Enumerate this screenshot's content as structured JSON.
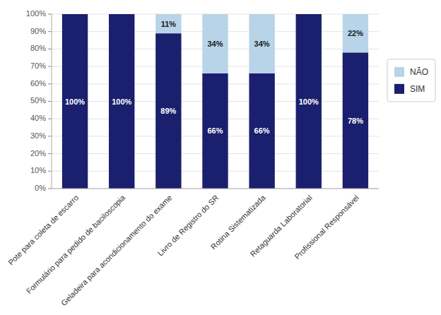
{
  "chart_data": {
    "type": "bar",
    "stacked": true,
    "categories": [
      "Pote para coleta de escarro",
      "Formulário para pedido de baciloscopia",
      "Geladeira para acondicionamento do exame",
      "Livro de Registro do SR",
      "Rotina Sistematizada",
      "Retaguarda Laboratorial",
      "Profissional Responsável"
    ],
    "series": [
      {
        "name": "SIM",
        "color": "#1a1f6e",
        "values": [
          100,
          100,
          89,
          66,
          66,
          100,
          78
        ],
        "value_labels": [
          "100%",
          "100%",
          "89%",
          "66%",
          "66%",
          "100%",
          "78%"
        ]
      },
      {
        "name": "NÃO",
        "color": "#b8d4e8",
        "values": [
          0,
          0,
          11,
          34,
          34,
          0,
          22
        ],
        "value_labels": [
          null,
          null,
          "11%",
          "34%",
          "34%",
          null,
          "22%"
        ]
      }
    ],
    "ylim": [
      0,
      100
    ],
    "yticks": [
      {
        "value": 0,
        "label": "0%"
      },
      {
        "value": 10,
        "label": "10%"
      },
      {
        "value": 20,
        "label": "20%"
      },
      {
        "value": 30,
        "label": "30%"
      },
      {
        "value": 40,
        "label": "40%"
      },
      {
        "value": 50,
        "label": "50%"
      },
      {
        "value": 60,
        "label": "60%"
      },
      {
        "value": 70,
        "label": "70%"
      },
      {
        "value": 80,
        "label": "80%"
      },
      {
        "value": 90,
        "label": "90%"
      },
      {
        "value": 100,
        "label": "100%"
      }
    ],
    "grid": true,
    "data_labels": true,
    "legend": "right"
  }
}
